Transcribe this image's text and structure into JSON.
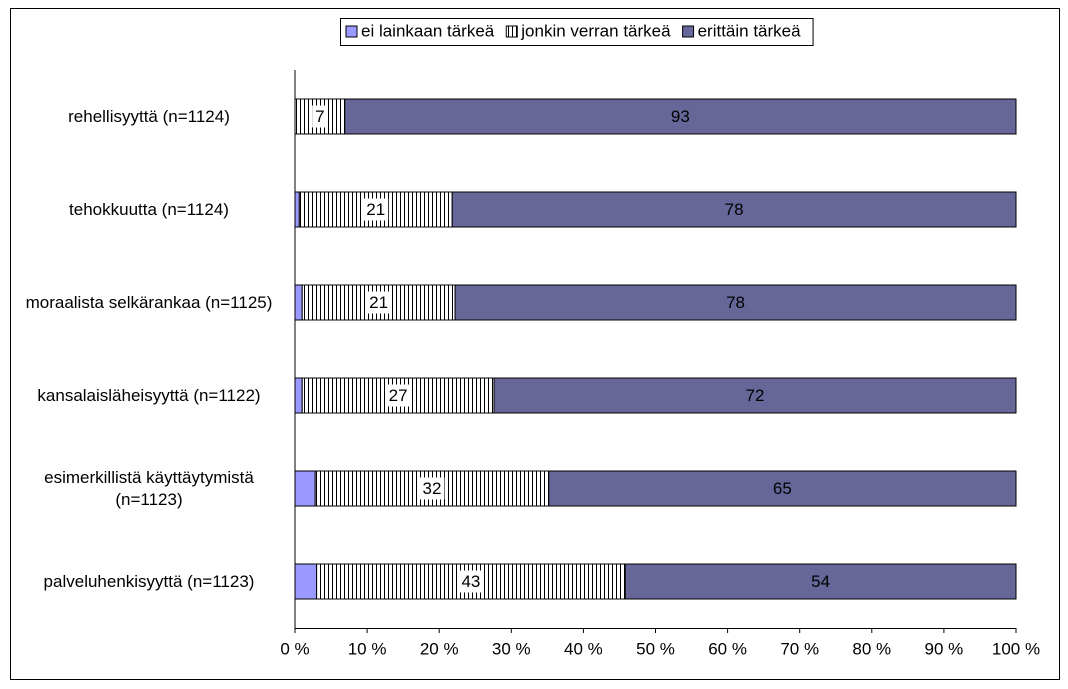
{
  "chart_data": {
    "type": "stacked-bar-horizontal",
    "categories": [
      "rehellisyyttä (n=1124)",
      "tehokkuutta (n=1124)",
      "moraalista selkärankaa (n=1125)",
      "kansalaisläheisyyttä (n=1122)",
      "esimerkillistä käyttäytymistä (n=1123)",
      "palveluhenkisyyttä (n=1123)"
    ],
    "series": [
      {
        "name": "ei lainkaan tärkeä",
        "color": "#9999ff",
        "values": [
          0,
          0.6,
          1.0,
          1.0,
          2.8,
          3.0
        ]
      },
      {
        "name": "jonkin verran tärkeä",
        "color": "#ffffff",
        "pattern": "vertical-lines",
        "values": [
          6.9,
          21.2,
          21.2,
          26.6,
          32.4,
          42.8
        ],
        "value_labels": [
          "7",
          "21",
          "21",
          "27",
          "32",
          "43"
        ]
      },
      {
        "name": "erittäin tärkeä",
        "color": "#666699",
        "values": [
          93.1,
          78.2,
          77.8,
          72.4,
          64.8,
          54.2
        ],
        "value_labels": [
          "93",
          "78",
          "78",
          "72",
          "65",
          "54"
        ]
      }
    ],
    "xlim": [
      0,
      100
    ],
    "xticks": [
      {
        "value": 0,
        "label": "0 %"
      },
      {
        "value": 10,
        "label": "10 %"
      },
      {
        "value": 20,
        "label": "20 %"
      },
      {
        "value": 30,
        "label": "30 %"
      },
      {
        "value": 40,
        "label": "40 %"
      },
      {
        "value": 50,
        "label": "50 %"
      },
      {
        "value": 60,
        "label": "60 %"
      },
      {
        "value": 70,
        "label": "70 %"
      },
      {
        "value": 80,
        "label": "80 %"
      },
      {
        "value": 90,
        "label": "90 %"
      },
      {
        "value": 100,
        "label": "100 %"
      }
    ],
    "legend": "top"
  }
}
